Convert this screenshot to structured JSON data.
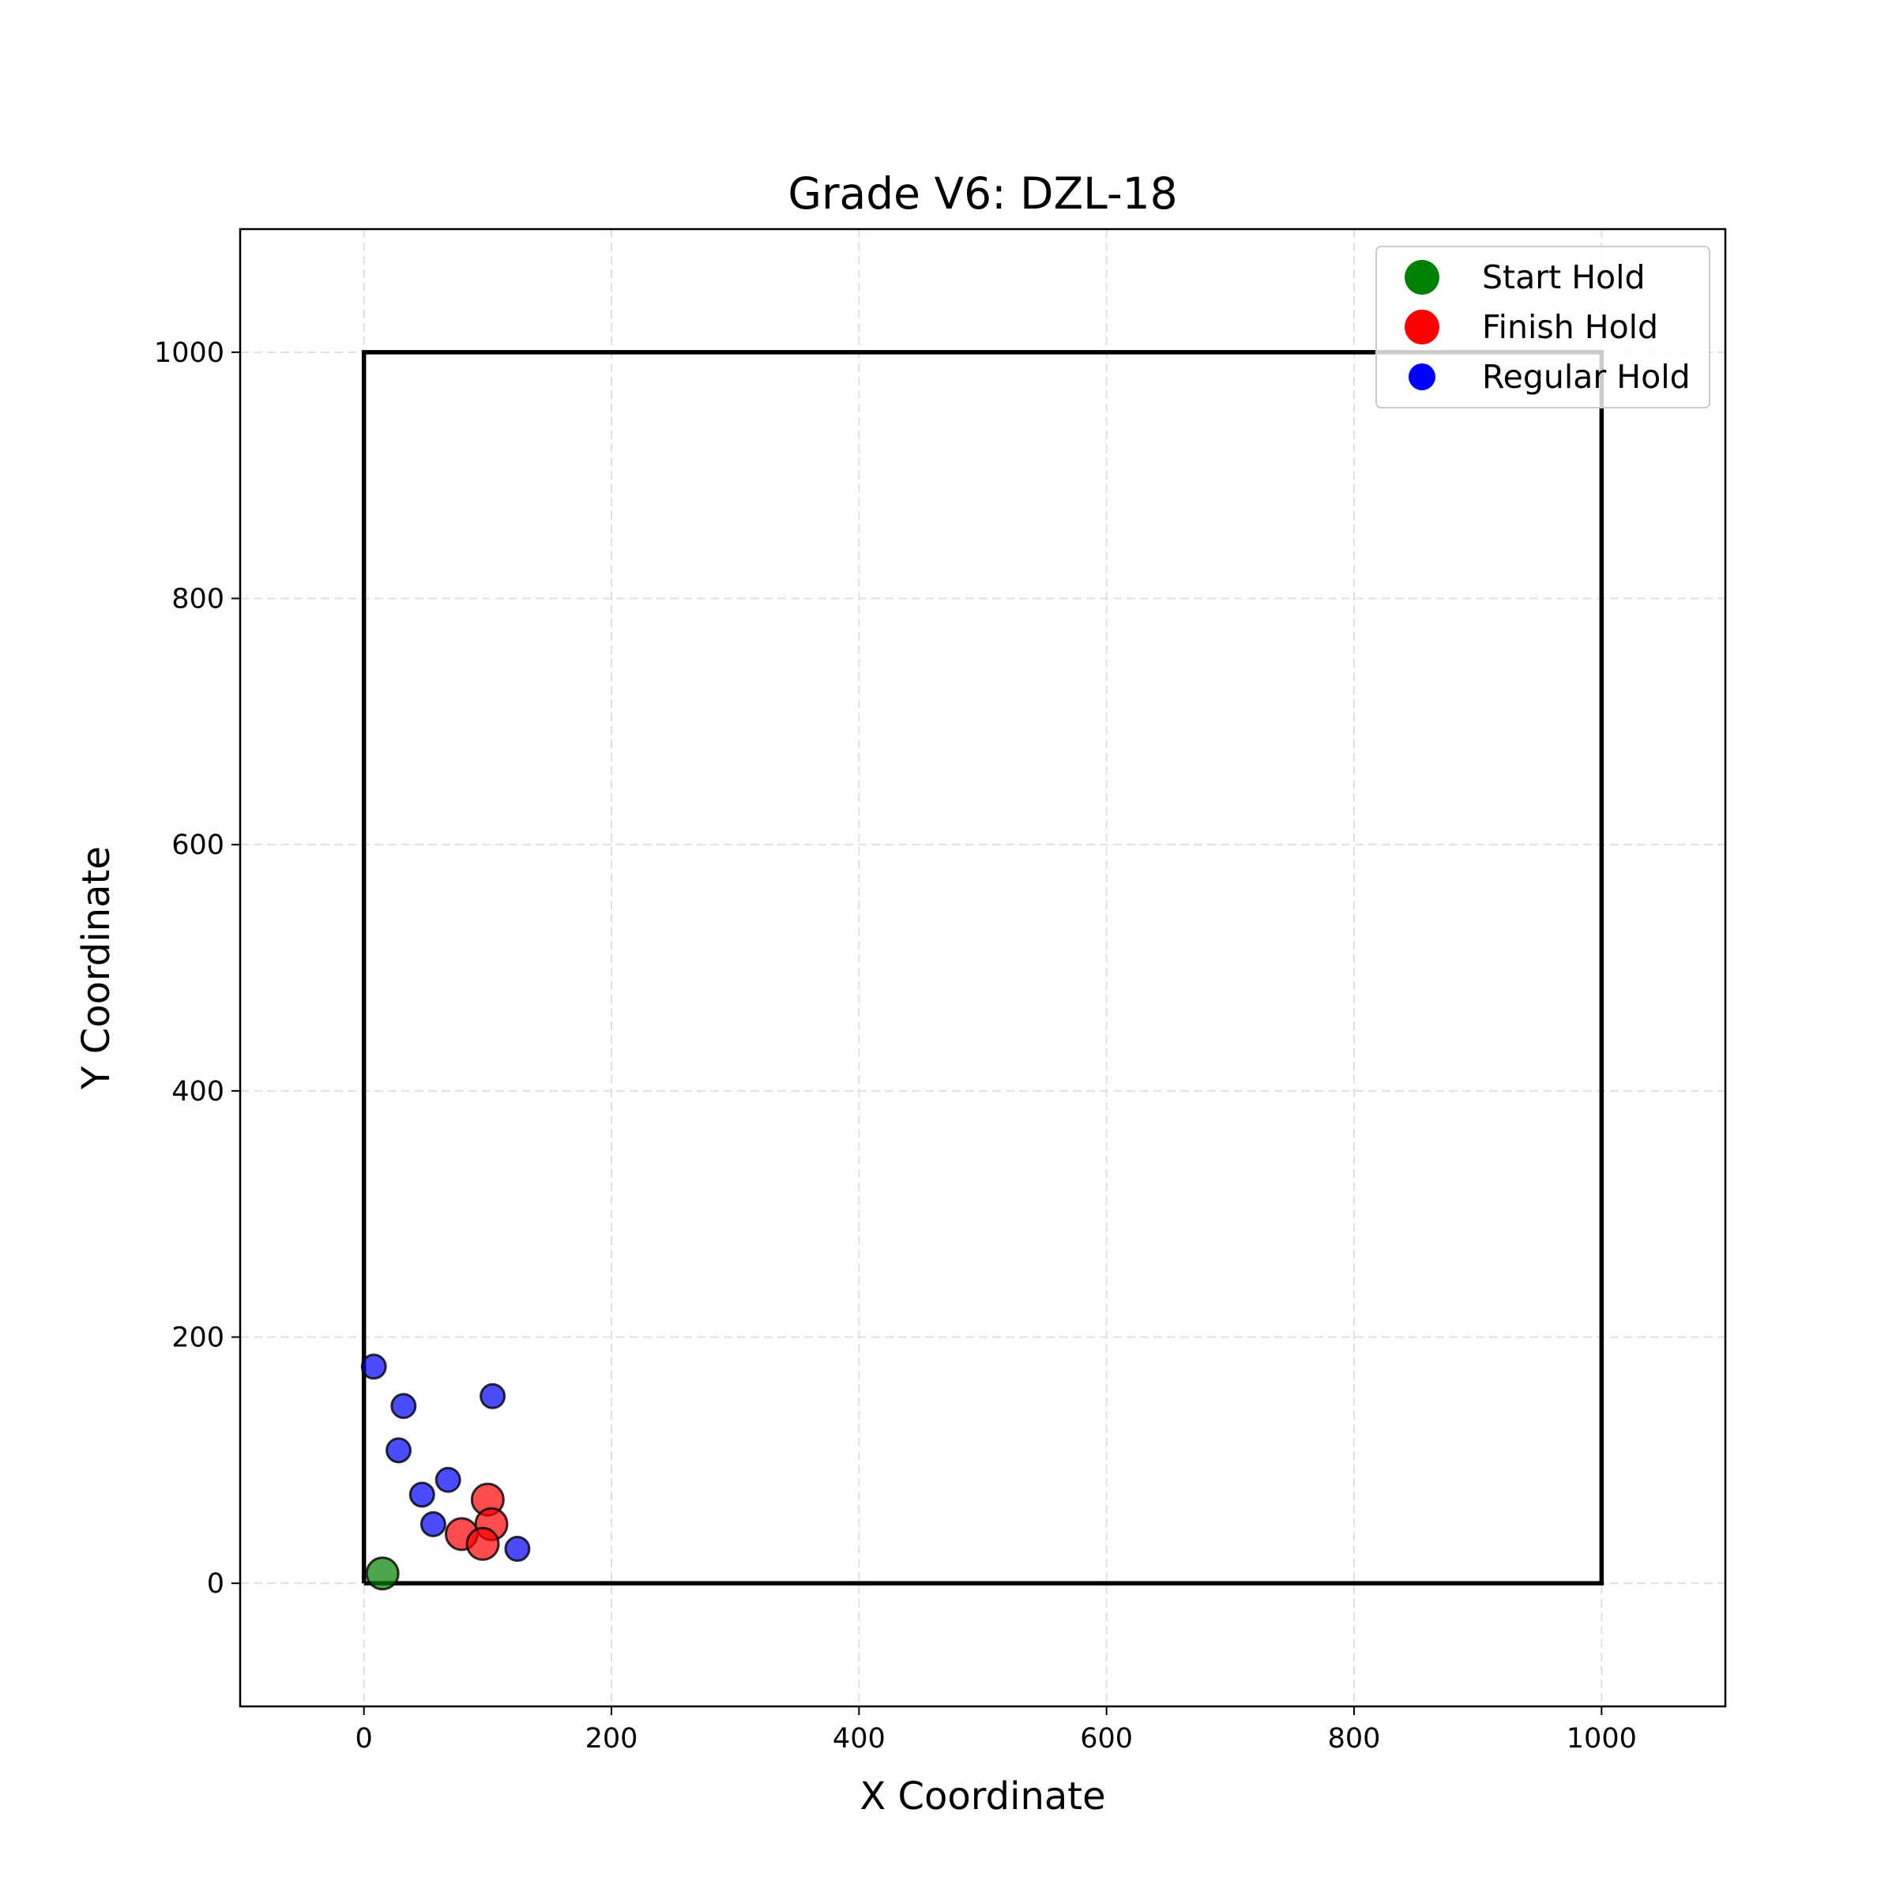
{
  "chart_data": {
    "type": "scatter",
    "title": "Grade V6: DZL-18",
    "xlabel": "X Coordinate",
    "ylabel": "Y Coordinate",
    "xlim": [
      -100,
      1100
    ],
    "ylim": [
      -100,
      1100
    ],
    "xticks": [
      0,
      200,
      400,
      600,
      800,
      1000
    ],
    "yticks": [
      0,
      200,
      400,
      600,
      800,
      1000
    ],
    "xtick_labels": [
      "0",
      "200",
      "400",
      "600",
      "800",
      "1000"
    ],
    "ytick_labels": [
      "0",
      "200",
      "400",
      "600",
      "800",
      "1000"
    ],
    "grid": true,
    "legend_position": "top-right",
    "wall_boundary": {
      "x": [
        0,
        1000,
        1000,
        0,
        0
      ],
      "y": [
        0,
        0,
        1000,
        1000,
        0
      ]
    },
    "series": [
      {
        "name": "Start Hold",
        "color": "#008000",
        "marker_size": "large",
        "points": [
          {
            "x": 15,
            "y": 8
          }
        ]
      },
      {
        "name": "Finish Hold",
        "color": "#ff0000",
        "marker_size": "large",
        "points": [
          {
            "x": 100,
            "y": 68
          },
          {
            "x": 103,
            "y": 48
          },
          {
            "x": 79,
            "y": 40
          },
          {
            "x": 96,
            "y": 32
          }
        ]
      },
      {
        "name": "Regular Hold",
        "color": "#0000ff",
        "marker_size": "small",
        "points": [
          {
            "x": 8,
            "y": 176
          },
          {
            "x": 32,
            "y": 144
          },
          {
            "x": 104,
            "y": 152
          },
          {
            "x": 28,
            "y": 108
          },
          {
            "x": 47,
            "y": 72
          },
          {
            "x": 68,
            "y": 84
          },
          {
            "x": 56,
            "y": 48
          },
          {
            "x": 124,
            "y": 28
          }
        ]
      }
    ]
  }
}
